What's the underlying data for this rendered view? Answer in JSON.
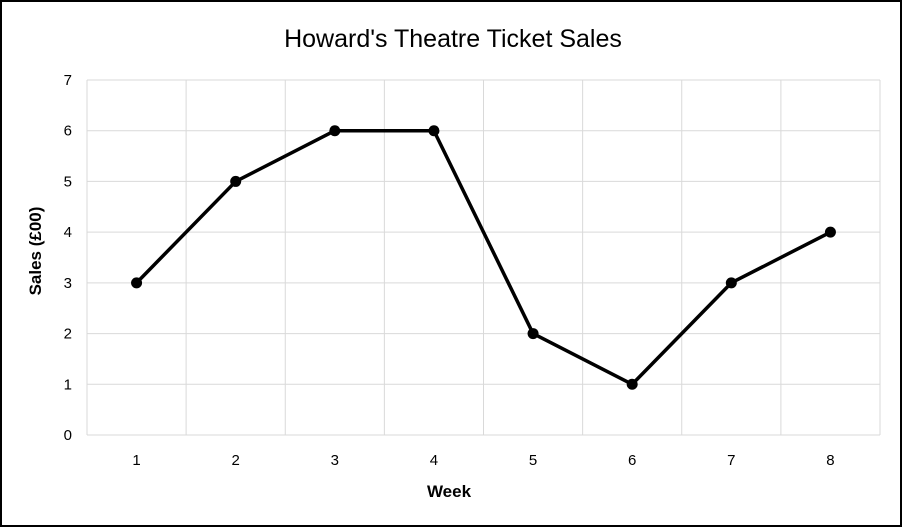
{
  "chart_data": {
    "type": "line",
    "title": "Howard's Theatre Ticket Sales",
    "xlabel": "Week",
    "ylabel": "Sales (£00)",
    "categories": [
      "1",
      "2",
      "3",
      "4",
      "5",
      "6",
      "7",
      "8"
    ],
    "x": [
      1,
      2,
      3,
      4,
      5,
      6,
      7,
      8
    ],
    "series": [
      {
        "values": [
          3,
          5,
          6,
          6,
          2,
          1,
          3,
          4
        ]
      }
    ],
    "ylim": [
      0,
      7
    ],
    "yticks": [
      0,
      1,
      2,
      3,
      4,
      5,
      6,
      7
    ],
    "grid": true,
    "legend": "none",
    "colors": {
      "line": "#000000",
      "marker": "#000000",
      "grid": "#d9d9d9",
      "border": "#000000"
    }
  }
}
